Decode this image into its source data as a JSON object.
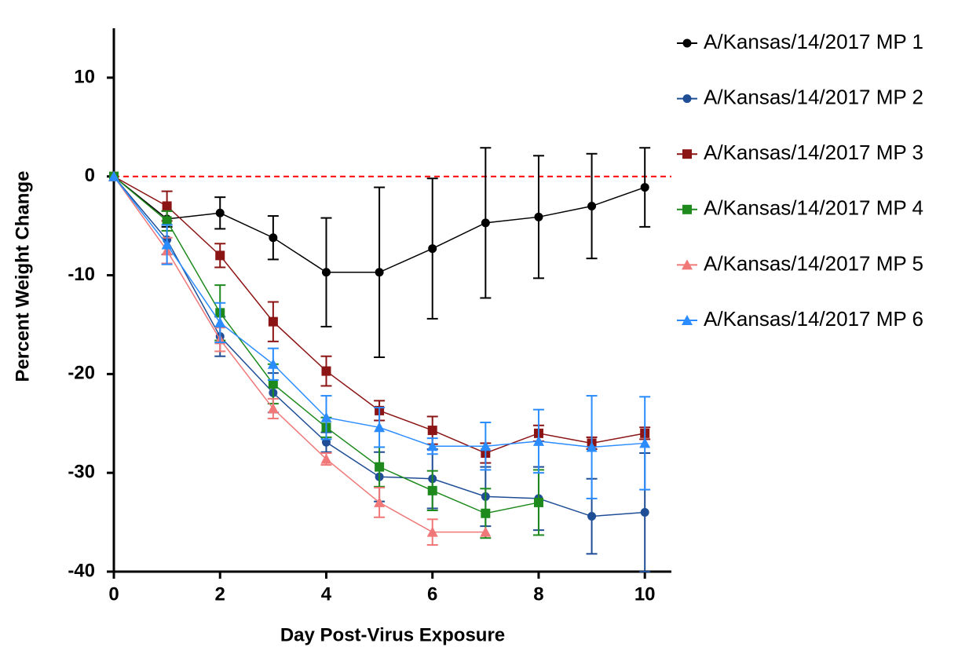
{
  "chart_data": {
    "type": "line",
    "x_label": "Day Post-Virus Exposure",
    "y_label": "Percent Weight Change",
    "x": [
      0,
      1,
      2,
      3,
      4,
      5,
      6,
      7,
      8,
      9,
      10
    ],
    "xlim": [
      0,
      10.5
    ],
    "xticks": [
      0,
      2,
      4,
      6,
      8,
      10
    ],
    "ylim": [
      -40,
      15
    ],
    "yticks": [
      -40,
      -30,
      -20,
      -10,
      0,
      10
    ],
    "reference_line": {
      "value": 0,
      "color": "#ff0000",
      "dashed": true
    },
    "legend": "right",
    "series": [
      {
        "name": "A/Kansas/14/2017 MP 1",
        "color": "#000000",
        "marker": "circle",
        "values": [
          0,
          -4.3,
          -3.7,
          -6.2,
          -9.7,
          -9.7,
          -7.3,
          -4.7,
          -4.1,
          -3.0,
          -1.1
        ],
        "errors": [
          0,
          0.8,
          1.6,
          2.2,
          5.5,
          8.6,
          7.1,
          7.6,
          6.2,
          5.3,
          4.0
        ]
      },
      {
        "name": "A/Kansas/14/2017 MP 2",
        "color": "#1f4e96",
        "marker": "circle",
        "values": [
          0,
          -6.4,
          -16.2,
          -21.9,
          -26.9,
          -30.4,
          -30.6,
          -32.4,
          -32.6,
          -34.4,
          -34.0
        ],
        "errors": [
          0,
          1.5,
          2.0,
          2.0,
          1.0,
          2.5,
          3.0,
          3.0,
          3.2,
          3.8,
          6.0
        ]
      },
      {
        "name": "A/Kansas/14/2017 MP 3",
        "color": "#8b1414",
        "marker": "square",
        "values": [
          0,
          -3.0,
          -8.0,
          -14.7,
          -19.7,
          -23.7,
          -25.7,
          -28.0,
          -26.0,
          -27.0,
          -26.0
        ],
        "errors": [
          0,
          1.5,
          1.2,
          2.0,
          1.5,
          1.0,
          1.4,
          1.0,
          0.8,
          0.6,
          0.6
        ]
      },
      {
        "name": "A/Kansas/14/2017 MP 4",
        "color": "#1e8a1e",
        "marker": "square",
        "values": [
          0,
          -4.5,
          -13.8,
          -21.0,
          -25.4,
          -29.4,
          -31.8,
          -34.1,
          -33.0,
          null,
          null
        ],
        "errors": [
          0,
          1.0,
          2.8,
          2.0,
          1.0,
          2.0,
          2.0,
          2.5,
          3.3,
          null,
          null
        ]
      },
      {
        "name": "A/Kansas/14/2017 MP 5",
        "color": "#f07878",
        "marker": "triangle",
        "values": [
          0,
          -7.5,
          -16.5,
          -23.5,
          -28.6,
          -33.0,
          -36.0,
          -36.0,
          null,
          null,
          null
        ],
        "errors": [
          0,
          1.3,
          1.2,
          1.0,
          0.6,
          1.5,
          1.3,
          0,
          null,
          null,
          null
        ]
      },
      {
        "name": "A/Kansas/14/2017 MP 6",
        "color": "#2a8cff",
        "marker": "triangle",
        "values": [
          0,
          -6.9,
          -14.8,
          -19.0,
          -24.4,
          -25.4,
          -27.3,
          -27.3,
          -26.8,
          -27.4,
          -27.0
        ],
        "errors": [
          0,
          2.0,
          2.0,
          1.6,
          2.2,
          2.0,
          0.8,
          2.4,
          3.2,
          5.2,
          4.7
        ]
      }
    ]
  }
}
